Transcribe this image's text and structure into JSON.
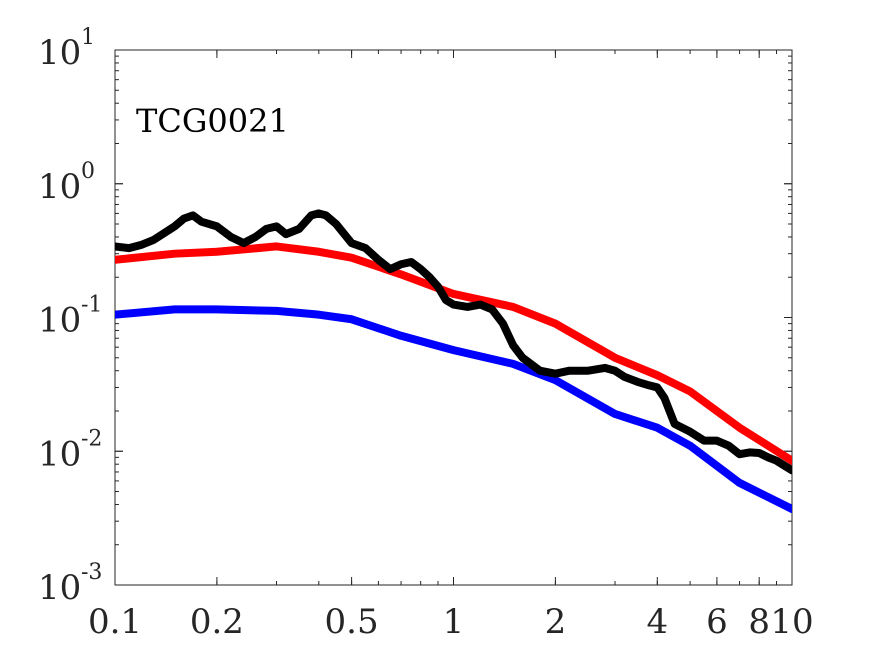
{
  "chart_data": {
    "type": "line",
    "xscale": "log",
    "yscale": "log",
    "xlim": [
      0.1,
      10
    ],
    "ylim": [
      0.001,
      10
    ],
    "grid": false,
    "annotation": "TCG0021",
    "x_ticks": [
      {
        "value": 0.1,
        "label": "0.1"
      },
      {
        "value": 0.2,
        "label": "0.2"
      },
      {
        "value": 0.5,
        "label": "0.5"
      },
      {
        "value": 1,
        "label": "1"
      },
      {
        "value": 2,
        "label": "2"
      },
      {
        "value": 4,
        "label": "4"
      },
      {
        "value": 6,
        "label": "6"
      },
      {
        "value": 8,
        "label": "8"
      },
      {
        "value": 10,
        "label": "10"
      }
    ],
    "y_ticks": [
      {
        "value": 0.001,
        "base": "10",
        "exp": "-3"
      },
      {
        "value": 0.01,
        "base": "10",
        "exp": "-2"
      },
      {
        "value": 0.1,
        "base": "10",
        "exp": "-1"
      },
      {
        "value": 1,
        "base": "10",
        "exp": "0"
      },
      {
        "value": 10,
        "base": "10",
        "exp": "1"
      }
    ],
    "series": [
      {
        "color": "#ff0000",
        "x": [
          0.1,
          0.15,
          0.2,
          0.3,
          0.4,
          0.5,
          0.7,
          1.0,
          1.5,
          2.0,
          3.0,
          4.0,
          5.0,
          7.0,
          10.0
        ],
        "y": [
          0.27,
          0.3,
          0.31,
          0.34,
          0.31,
          0.28,
          0.21,
          0.15,
          0.12,
          0.09,
          0.05,
          0.037,
          0.028,
          0.015,
          0.0085
        ]
      },
      {
        "color": "#0000ff",
        "x": [
          0.1,
          0.15,
          0.2,
          0.3,
          0.4,
          0.5,
          0.7,
          1.0,
          1.5,
          2.0,
          3.0,
          4.0,
          5.0,
          7.0,
          10.0
        ],
        "y": [
          0.105,
          0.115,
          0.115,
          0.112,
          0.105,
          0.097,
          0.073,
          0.057,
          0.045,
          0.034,
          0.019,
          0.015,
          0.011,
          0.0058,
          0.0037
        ]
      },
      {
        "color": "#000000",
        "x": [
          0.1,
          0.11,
          0.12,
          0.13,
          0.15,
          0.16,
          0.17,
          0.18,
          0.2,
          0.22,
          0.24,
          0.26,
          0.28,
          0.3,
          0.32,
          0.35,
          0.38,
          0.4,
          0.42,
          0.45,
          0.5,
          0.55,
          0.6,
          0.65,
          0.7,
          0.75,
          0.8,
          0.85,
          0.9,
          0.95,
          1.0,
          1.1,
          1.2,
          1.3,
          1.4,
          1.5,
          1.6,
          1.8,
          2.0,
          2.2,
          2.5,
          2.8,
          3.0,
          3.2,
          3.5,
          3.8,
          4.0,
          4.2,
          4.5,
          5.0,
          5.5,
          6.0,
          6.5,
          7.0,
          7.5,
          8.0,
          8.5,
          9.0,
          9.5,
          10.0
        ],
        "y": [
          0.34,
          0.33,
          0.35,
          0.38,
          0.48,
          0.55,
          0.58,
          0.52,
          0.48,
          0.4,
          0.36,
          0.4,
          0.46,
          0.48,
          0.42,
          0.46,
          0.58,
          0.6,
          0.58,
          0.5,
          0.36,
          0.33,
          0.27,
          0.23,
          0.25,
          0.26,
          0.23,
          0.2,
          0.17,
          0.135,
          0.125,
          0.12,
          0.125,
          0.115,
          0.09,
          0.062,
          0.05,
          0.04,
          0.038,
          0.04,
          0.04,
          0.042,
          0.04,
          0.036,
          0.033,
          0.031,
          0.03,
          0.025,
          0.016,
          0.014,
          0.012,
          0.012,
          0.011,
          0.0095,
          0.0098,
          0.0097,
          0.009,
          0.0085,
          0.0078,
          0.0072
        ]
      }
    ]
  }
}
